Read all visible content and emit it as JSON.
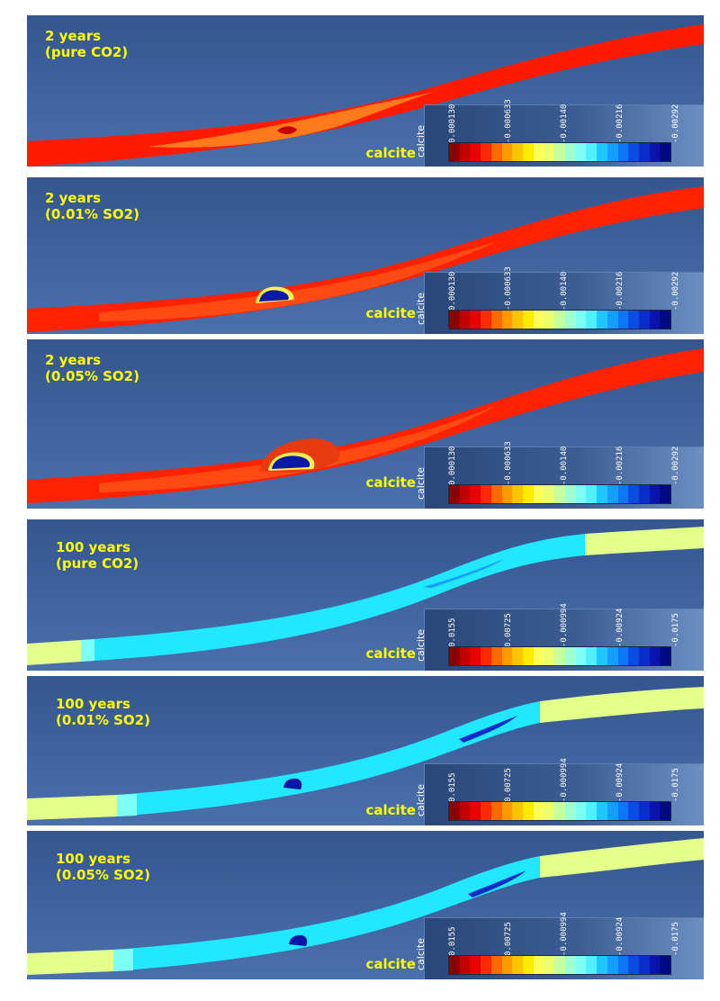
{
  "palette": [
    "#8b0000",
    "#c30000",
    "#e60000",
    "#ff2a00",
    "#ff6a00",
    "#ff9a00",
    "#ffc400",
    "#ffea00",
    "#ffff5a",
    "#e9ff6e",
    "#c4ffa0",
    "#9dffd2",
    "#7dfff5",
    "#4ff0ff",
    "#1ec8ff",
    "#149eff",
    "#0f74f5",
    "#0b4ce0",
    "#0a2cc8",
    "#0a14a8",
    "#000a80"
  ],
  "panels": [
    {
      "title_line1": "2 years",
      "title_line2": "(pure CO2)",
      "variable": "calcite",
      "colorbar_ticks": [
        "0.000130",
        "-0.000633",
        "-0.00140",
        "-0.00216",
        "-0.00292"
      ]
    },
    {
      "title_line1": "2 years",
      "title_line2": "(0.01% SO2)",
      "variable": "calcite",
      "colorbar_ticks": [
        "0.000130",
        "-0.000633",
        "-0.00140",
        "-0.00216",
        "-0.00292"
      ]
    },
    {
      "title_line1": "2 years",
      "title_line2": "(0.05% SO2)",
      "variable": "calcite",
      "colorbar_ticks": [
        "0.000130",
        "-0.000633",
        "-0.00140",
        "-0.00216",
        "-0.00292"
      ]
    },
    {
      "title_line1": "100 years",
      "title_line2": "(pure CO2)",
      "variable": "calcite",
      "colorbar_ticks": [
        "0.0155",
        "0.00725",
        "-0.000994",
        "-0.00924",
        "-0.0175"
      ]
    },
    {
      "title_line1": "100 years",
      "title_line2": "(0.01% SO2)",
      "variable": "calcite",
      "colorbar_ticks": [
        "0.0155",
        "0.00725",
        "-0.000994",
        "-0.00924",
        "-0.0175"
      ]
    },
    {
      "title_line1": "100 years",
      "title_line2": "(0.05% SO2)",
      "variable": "calcite",
      "colorbar_ticks": [
        "0.0155",
        "0.00725",
        "-0.000994",
        "-0.00924",
        "-0.0175"
      ]
    }
  ]
}
